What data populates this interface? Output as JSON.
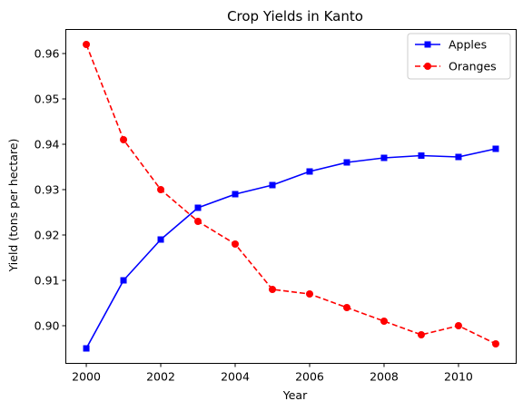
{
  "chart_data": {
    "type": "line",
    "title": "Crop Yields in Kanto",
    "xlabel": "Year",
    "ylabel": "Yield (tons per hectare)",
    "x": [
      2000,
      2001,
      2002,
      2003,
      2004,
      2005,
      2006,
      2007,
      2008,
      2009,
      2010,
      2011
    ],
    "xlim": [
      1999.45,
      2011.55
    ],
    "ylim": [
      0.8917,
      0.9653
    ],
    "xticks": [
      2000,
      2002,
      2004,
      2006,
      2008,
      2010
    ],
    "yticks": [
      0.9,
      0.91,
      0.92,
      0.93,
      0.94,
      0.95,
      0.96
    ],
    "ytick_labels": [
      "0.90",
      "0.91",
      "0.92",
      "0.93",
      "0.94",
      "0.95",
      "0.96"
    ],
    "grid": false,
    "legend_position": "top-right",
    "series": [
      {
        "name": "Apples",
        "color": "#0000ff",
        "linestyle": "solid",
        "marker": "square",
        "values": [
          0.895,
          0.91,
          0.919,
          0.926,
          0.929,
          0.931,
          0.934,
          0.936,
          0.937,
          0.9375,
          0.9372,
          0.939
        ]
      },
      {
        "name": "Oranges",
        "color": "#ff0000",
        "linestyle": "dashed",
        "marker": "circle",
        "values": [
          0.962,
          0.941,
          0.93,
          0.923,
          0.918,
          0.908,
          0.907,
          0.904,
          0.901,
          0.898,
          0.9,
          0.896
        ]
      }
    ]
  }
}
